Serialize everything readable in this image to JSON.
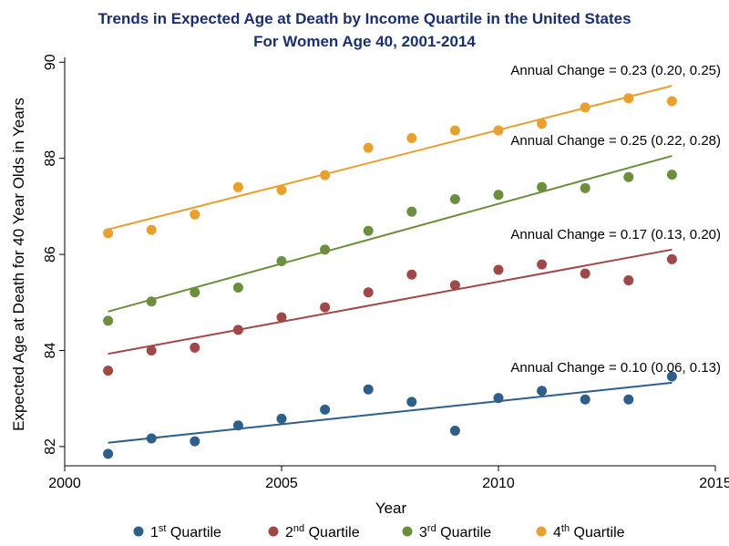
{
  "chart_data": {
    "type": "scatter",
    "title": "Trends in Expected Age at Death by Income Quartile in the United States",
    "subtitle": "For Women Age 40, 2001-2014",
    "xlabel": "Year",
    "ylabel": "Expected Age at Death for 40 Year Olds in Years",
    "xlim": [
      2000,
      2015
    ],
    "ylim": [
      81.6,
      90.1
    ],
    "xticks": [
      "2000",
      "2005",
      "2010",
      "2015"
    ],
    "yticks": [
      "82",
      "84",
      "86",
      "88",
      "90"
    ],
    "x": [
      2001,
      2002,
      2003,
      2004,
      2005,
      2006,
      2007,
      2008,
      2009,
      2010,
      2011,
      2012,
      2013,
      2014
    ],
    "series": [
      {
        "name": "1st Quartile",
        "legend_base": "1",
        "legend_sup": "st",
        "legend_rest": " Quartile",
        "color": "#2d5f8a",
        "values": [
          81.85,
          82.17,
          82.11,
          82.44,
          82.58,
          82.77,
          83.19,
          82.93,
          82.33,
          83.01,
          83.16,
          82.98,
          82.98,
          83.46
        ],
        "fit": [
          82.08,
          83.33
        ],
        "annotation": "Annual Change = 0.10 (0.06, 0.13)"
      },
      {
        "name": "2nd Quartile",
        "legend_base": "2",
        "legend_sup": "nd",
        "legend_rest": " Quartile",
        "color": "#a04848",
        "values": [
          83.58,
          84.0,
          84.06,
          84.43,
          84.69,
          84.9,
          85.21,
          85.58,
          85.36,
          85.68,
          85.79,
          85.6,
          85.46,
          85.9
        ],
        "fit": [
          83.93,
          86.1
        ],
        "annotation": "Annual Change = 0.17 (0.13, 0.20)"
      },
      {
        "name": "3rd Quartile",
        "legend_base": "3",
        "legend_sup": "rd",
        "legend_rest": " Quartile",
        "color": "#6b8f3c",
        "values": [
          84.62,
          85.02,
          85.21,
          85.31,
          85.86,
          86.1,
          86.49,
          86.89,
          87.15,
          87.24,
          87.4,
          87.38,
          87.61,
          87.66
        ],
        "fit": [
          84.81,
          88.05
        ],
        "annotation": "Annual Change = 0.25 (0.22, 0.28)"
      },
      {
        "name": "4th Quartile",
        "legend_base": "4",
        "legend_sup": "th",
        "legend_rest": " Quartile",
        "color": "#e8a030",
        "values": [
          86.44,
          86.51,
          86.83,
          87.4,
          87.34,
          87.65,
          88.22,
          88.42,
          88.58,
          88.58,
          88.72,
          89.06,
          89.25,
          89.19
        ],
        "fit": [
          86.52,
          89.51
        ],
        "annotation": "Annual Change = 0.23 (0.20, 0.25)"
      }
    ]
  }
}
